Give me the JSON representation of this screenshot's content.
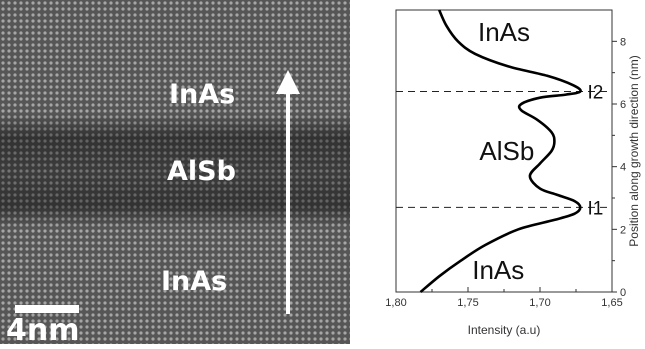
{
  "micrograph": {
    "labels": {
      "top": "InAs",
      "middle": "AlSb",
      "bottom": "InAs"
    },
    "scale_bar": "4nm",
    "arrow": "growth-direction-arrow"
  },
  "chart_data": {
    "type": "line",
    "xlabel": "Intensity (a.u)",
    "ylabel": "Position along growth direction (nm)",
    "xlim": [
      1.8,
      1.65
    ],
    "ylim": [
      0,
      9
    ],
    "x_ticks": [
      "1,80",
      "1,75",
      "1,70",
      "1,65"
    ],
    "y_ticks": [
      "0",
      "2",
      "4",
      "6",
      "8"
    ],
    "grid": false,
    "series": [
      {
        "x": [
          1.783,
          1.77,
          1.755,
          1.738,
          1.715,
          1.69,
          1.676,
          1.672,
          1.676,
          1.688,
          1.7,
          1.707,
          1.7,
          1.692,
          1.69,
          1.692,
          1.702,
          1.713,
          1.713,
          1.7,
          1.682,
          1.672,
          1.677,
          1.695,
          1.722,
          1.745,
          1.757,
          1.765,
          1.77
        ],
        "y": [
          0.0,
          0.5,
          1.0,
          1.5,
          2.0,
          2.3,
          2.5,
          2.7,
          2.9,
          3.1,
          3.3,
          3.7,
          4.1,
          4.5,
          4.8,
          5.1,
          5.5,
          5.8,
          6.0,
          6.2,
          6.3,
          6.4,
          6.6,
          6.9,
          7.2,
          7.6,
          8.0,
          8.5,
          9.0
        ]
      }
    ],
    "dashed_lines_y": [
      2.7,
      6.4
    ],
    "annotations": [
      {
        "text": "InAs",
        "x": 1.725,
        "y": 8.3
      },
      {
        "text": "AlSb",
        "x": 1.723,
        "y": 4.5
      },
      {
        "text": "InAs",
        "x": 1.729,
        "y": 0.7
      },
      {
        "text": "I1",
        "x": 1.667,
        "y": 2.7
      },
      {
        "text": "I2",
        "x": 1.667,
        "y": 6.4
      }
    ],
    "colors": {
      "curve": "#000000",
      "axes": "#333333"
    }
  }
}
